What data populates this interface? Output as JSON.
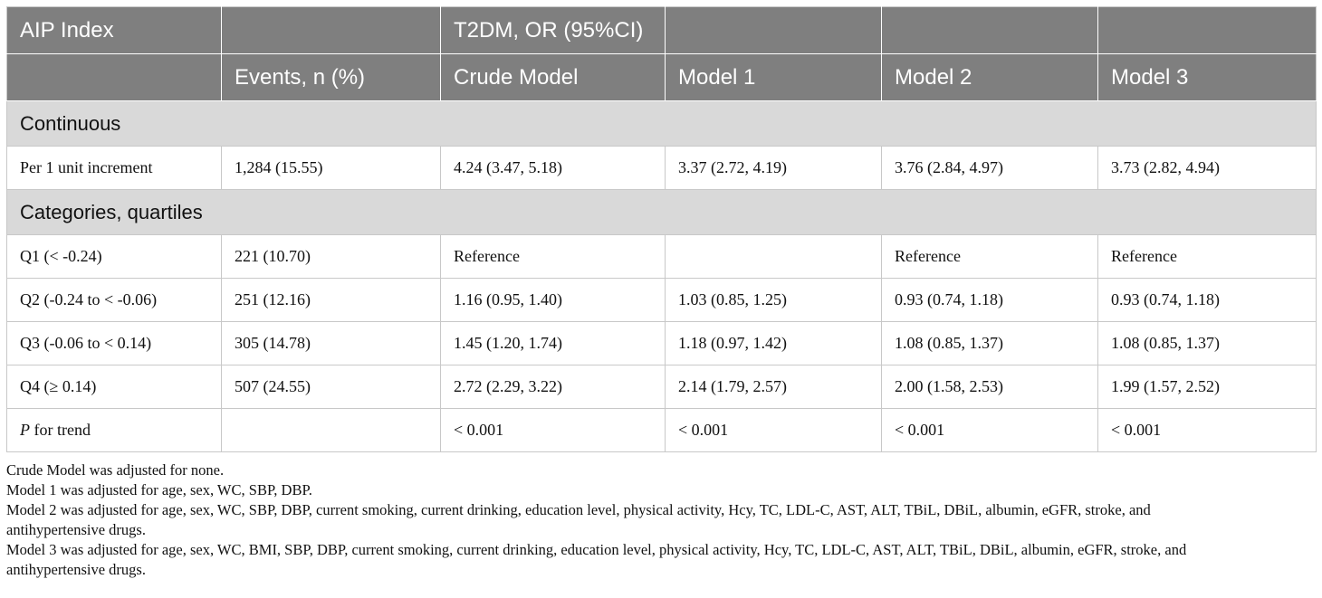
{
  "header": {
    "row1": [
      "AIP Index",
      "",
      "T2DM, OR (95%CI)",
      "",
      "",
      ""
    ],
    "row2": [
      "",
      "Events, n (%)",
      "Crude Model",
      "Model 1",
      "Model 2",
      "Model 3"
    ]
  },
  "sections": {
    "continuous": "Continuous",
    "categories": "Categories, quartiles"
  },
  "rows": {
    "per_unit": [
      "Per 1 unit increment",
      "1,284 (15.55)",
      "4.24 (3.47, 5.18)",
      "3.37 (2.72, 4.19)",
      "3.76 (2.84, 4.97)",
      "3.73 (2.82, 4.94)"
    ],
    "q1": [
      "Q1 (< -0.24)",
      "221 (10.70)",
      "Reference",
      "",
      "Reference",
      "Reference"
    ],
    "q2": [
      "Q2 (-0.24 to < -0.06)",
      "251 (12.16)",
      "1.16 (0.95, 1.40)",
      "1.03 (0.85, 1.25)",
      "0.93 (0.74, 1.18)",
      "0.93 (0.74, 1.18)"
    ],
    "q3": [
      "Q3 (-0.06 to < 0.14)",
      "305 (14.78)",
      "1.45 (1.20, 1.74)",
      "1.18 (0.97, 1.42)",
      "1.08 (0.85, 1.37)",
      "1.08 (0.85, 1.37)"
    ],
    "q4": [
      "Q4 (≥ 0.14)",
      "507 (24.55)",
      "2.72 (2.29, 3.22)",
      "2.14 (1.79, 2.57)",
      "2.00 (1.58, 2.53)",
      "1.99 (1.57, 2.52)"
    ],
    "trend": {
      "p_label": "P",
      "label_rest": " for trend",
      "cells": [
        "",
        "< 0.001",
        "< 0.001",
        "< 0.001",
        "< 0.001"
      ]
    }
  },
  "notes": [
    "Crude Model was adjusted for none.",
    "Model 1 was adjusted for age, sex, WC, SBP, DBP.",
    "Model 2 was adjusted for age, sex, WC, SBP, DBP, current smoking, current drinking, education level, physical activity, Hcy, TC, LDL-C, AST, ALT, TBiL, DBiL, albumin, eGFR, stroke, and",
    "antihypertensive drugs.",
    "Model 3 was adjusted for age, sex, WC, BMI, SBP, DBP, current smoking, current drinking, education level, physical activity, Hcy, TC, LDL-C, AST, ALT, TBiL, DBiL, albumin, eGFR, stroke, and",
    "antihypertensive drugs."
  ]
}
